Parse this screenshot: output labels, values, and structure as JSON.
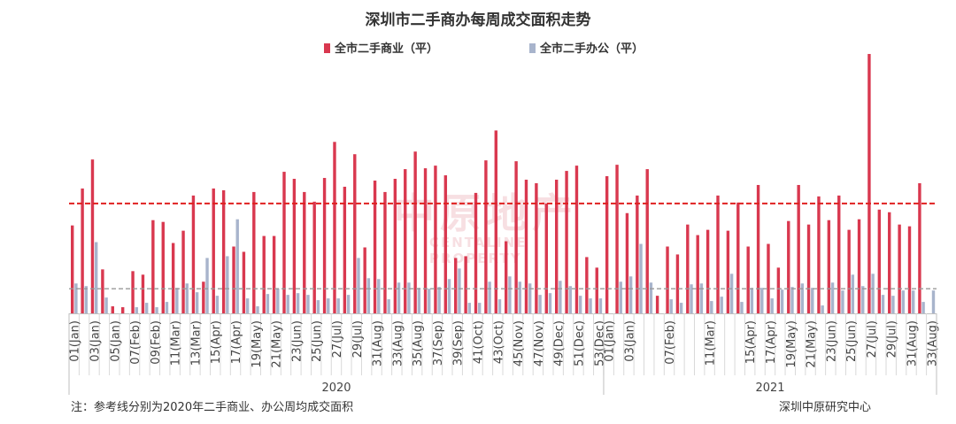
{
  "colors": {
    "commercial": "#d9384f",
    "office": "#a8b4cc",
    "ref_commercial": "#e02020",
    "ref_office": "#999999"
  },
  "watermark": {
    "main": "中原地产",
    "sub": "CENTALINE PROPERTY"
  },
  "note": "注：参考线分别为2020年二手商业、办公周均成交面积",
  "source": "深圳中原研究中心",
  "chart_data": {
    "type": "bar",
    "title": "深圳市二手商办每周成交面积走势",
    "legend_position": "top",
    "grid": false,
    "categories": [
      "01(Jan)",
      "02(Jan)",
      "03(Jan)",
      "04(Jan)",
      "05(Jan)",
      "06(Feb)",
      "07(Feb)",
      "08(Feb)",
      "09(Feb)",
      "10(Mar)",
      "11(Mar)",
      "12(Mar)",
      "13(Mar)",
      "14(Apr)",
      "15(Apr)",
      "16(Apr)",
      "17(Apr)",
      "18(May)",
      "19(May)",
      "20(May)",
      "21(May)",
      "22(May)",
      "23(Jun)",
      "24(Jun)",
      "25(Jun)",
      "26(Jun)",
      "27(Jul)",
      "28(Jul)",
      "29(Jul)",
      "30(Jul)",
      "31(Aug)",
      "32(Aug)",
      "33(Aug)",
      "34(Aug)",
      "35(Aug)",
      "36(Sep)",
      "37(Sep)",
      "38(Sep)",
      "39(Sep)",
      "40(Oct)",
      "41(Oct)",
      "42(Oct)",
      "43(Oct)",
      "44(Nov)",
      "45(Nov)",
      "46(Nov)",
      "47(Nov)",
      "48(Dec)",
      "49(Dec)",
      "50(Dec)",
      "51(Dec)",
      "52(Dec)",
      "53(Dec)",
      "01(Jan)",
      "02(Jan)",
      "03(Jan)",
      "04(Jan)",
      "05(Feb)",
      "06(Feb)",
      "07(Feb)",
      "08(Feb)",
      "09(Mar)",
      "10(Mar)",
      "11(Mar)",
      "12(Mar)",
      "13(Apr)",
      "14(Apr)",
      "15(Apr)",
      "16(Apr)",
      "17(Apr)",
      "18(Apr)",
      "19(May)",
      "20(May)",
      "21(May)",
      "22(May)",
      "23(Jun)",
      "24(Jun)",
      "25(Jun)",
      "26(Jul)",
      "27(Jul)",
      "28(Jul)",
      "29(Jul)",
      "30(Jul)",
      "31(Aug)",
      "32(Aug)",
      "33(Aug)"
    ],
    "tick_labels_shown": [
      "01(Jan)",
      "03(Jan)",
      "05(Jan)",
      "07(Feb)",
      "09(Feb)",
      "11(Mar)",
      "13(Mar)",
      "15(Apr)",
      "17(Apr)",
      "19(May)",
      "21(May)",
      "23(Jun)",
      "25(Jun)",
      "27(Jul)",
      "29(Jul)",
      "31(Aug)",
      "33(Aug)",
      "35(Aug)",
      "37(Sep)",
      "39(Sep)",
      "41(Oct)",
      "43(Oct)",
      "45(Nov)",
      "47(Nov)",
      "49(Dec)",
      "51(Dec)",
      "53(Dec)",
      "02(Jan)",
      "04(Jan)",
      "06(Feb)",
      "08(Feb)",
      "10(Mar)",
      "12(Mar)",
      "14(Apr)",
      "16(Apr)",
      "18(Apr)",
      "20(May)",
      "22(May)",
      "24(Jun)",
      "26(Jul)",
      "28(Jul)",
      "30(Jul)",
      "32(Aug)"
    ],
    "year_groups": [
      {
        "label": "2020",
        "count": 53
      },
      {
        "label": "2021",
        "count": 33
      }
    ],
    "series": [
      {
        "name": "全市二手商业（平）",
        "values": [
          100,
          142,
          175,
          50,
          8,
          7,
          48,
          44,
          106,
          104,
          80,
          94,
          134,
          36,
          142,
          140,
          76,
          70,
          138,
          88,
          88,
          161,
          153,
          138,
          127,
          154,
          195,
          144,
          181,
          75,
          151,
          138,
          153,
          164,
          184,
          165,
          168,
          157,
          63,
          65,
          137,
          174,
          208,
          82,
          173,
          152,
          148,
          125,
          152,
          162,
          168,
          64,
          52,
          156,
          169,
          114,
          134,
          164,
          20,
          76,
          67,
          101,
          89,
          95,
          134,
          94,
          126,
          76,
          146,
          79,
          52,
          105,
          146,
          101,
          133,
          106,
          134,
          95,
          107,
          295,
          118,
          115,
          101,
          99,
          148,
          0
        ]
      },
      {
        "name": "全市二手办公（平）",
        "values": [
          34,
          31,
          81,
          18,
          0,
          0,
          7,
          12,
          7,
          13,
          29,
          34,
          24,
          63,
          20,
          65,
          107,
          17,
          8,
          22,
          28,
          21,
          23,
          21,
          15,
          17,
          17,
          21,
          63,
          40,
          39,
          16,
          35,
          35,
          29,
          28,
          30,
          39,
          51,
          12,
          12,
          36,
          16,
          42,
          36,
          34,
          21,
          23,
          37,
          31,
          20,
          17,
          17,
          0,
          36,
          42,
          79,
          35,
          0,
          16,
          12,
          33,
          34,
          14,
          19,
          45,
          13,
          29,
          29,
          17,
          27,
          30,
          34,
          29,
          9,
          35,
          26,
          44,
          31,
          45,
          21,
          20,
          26,
          26,
          13,
          26
        ]
      }
    ],
    "reference_lines": [
      {
        "series": "全市二手商业（平）",
        "value": 125
      },
      {
        "series": "全市二手办公（平）",
        "value": 28
      }
    ],
    "ylim": [
      0,
      300
    ],
    "xlabel": "",
    "ylabel": ""
  }
}
